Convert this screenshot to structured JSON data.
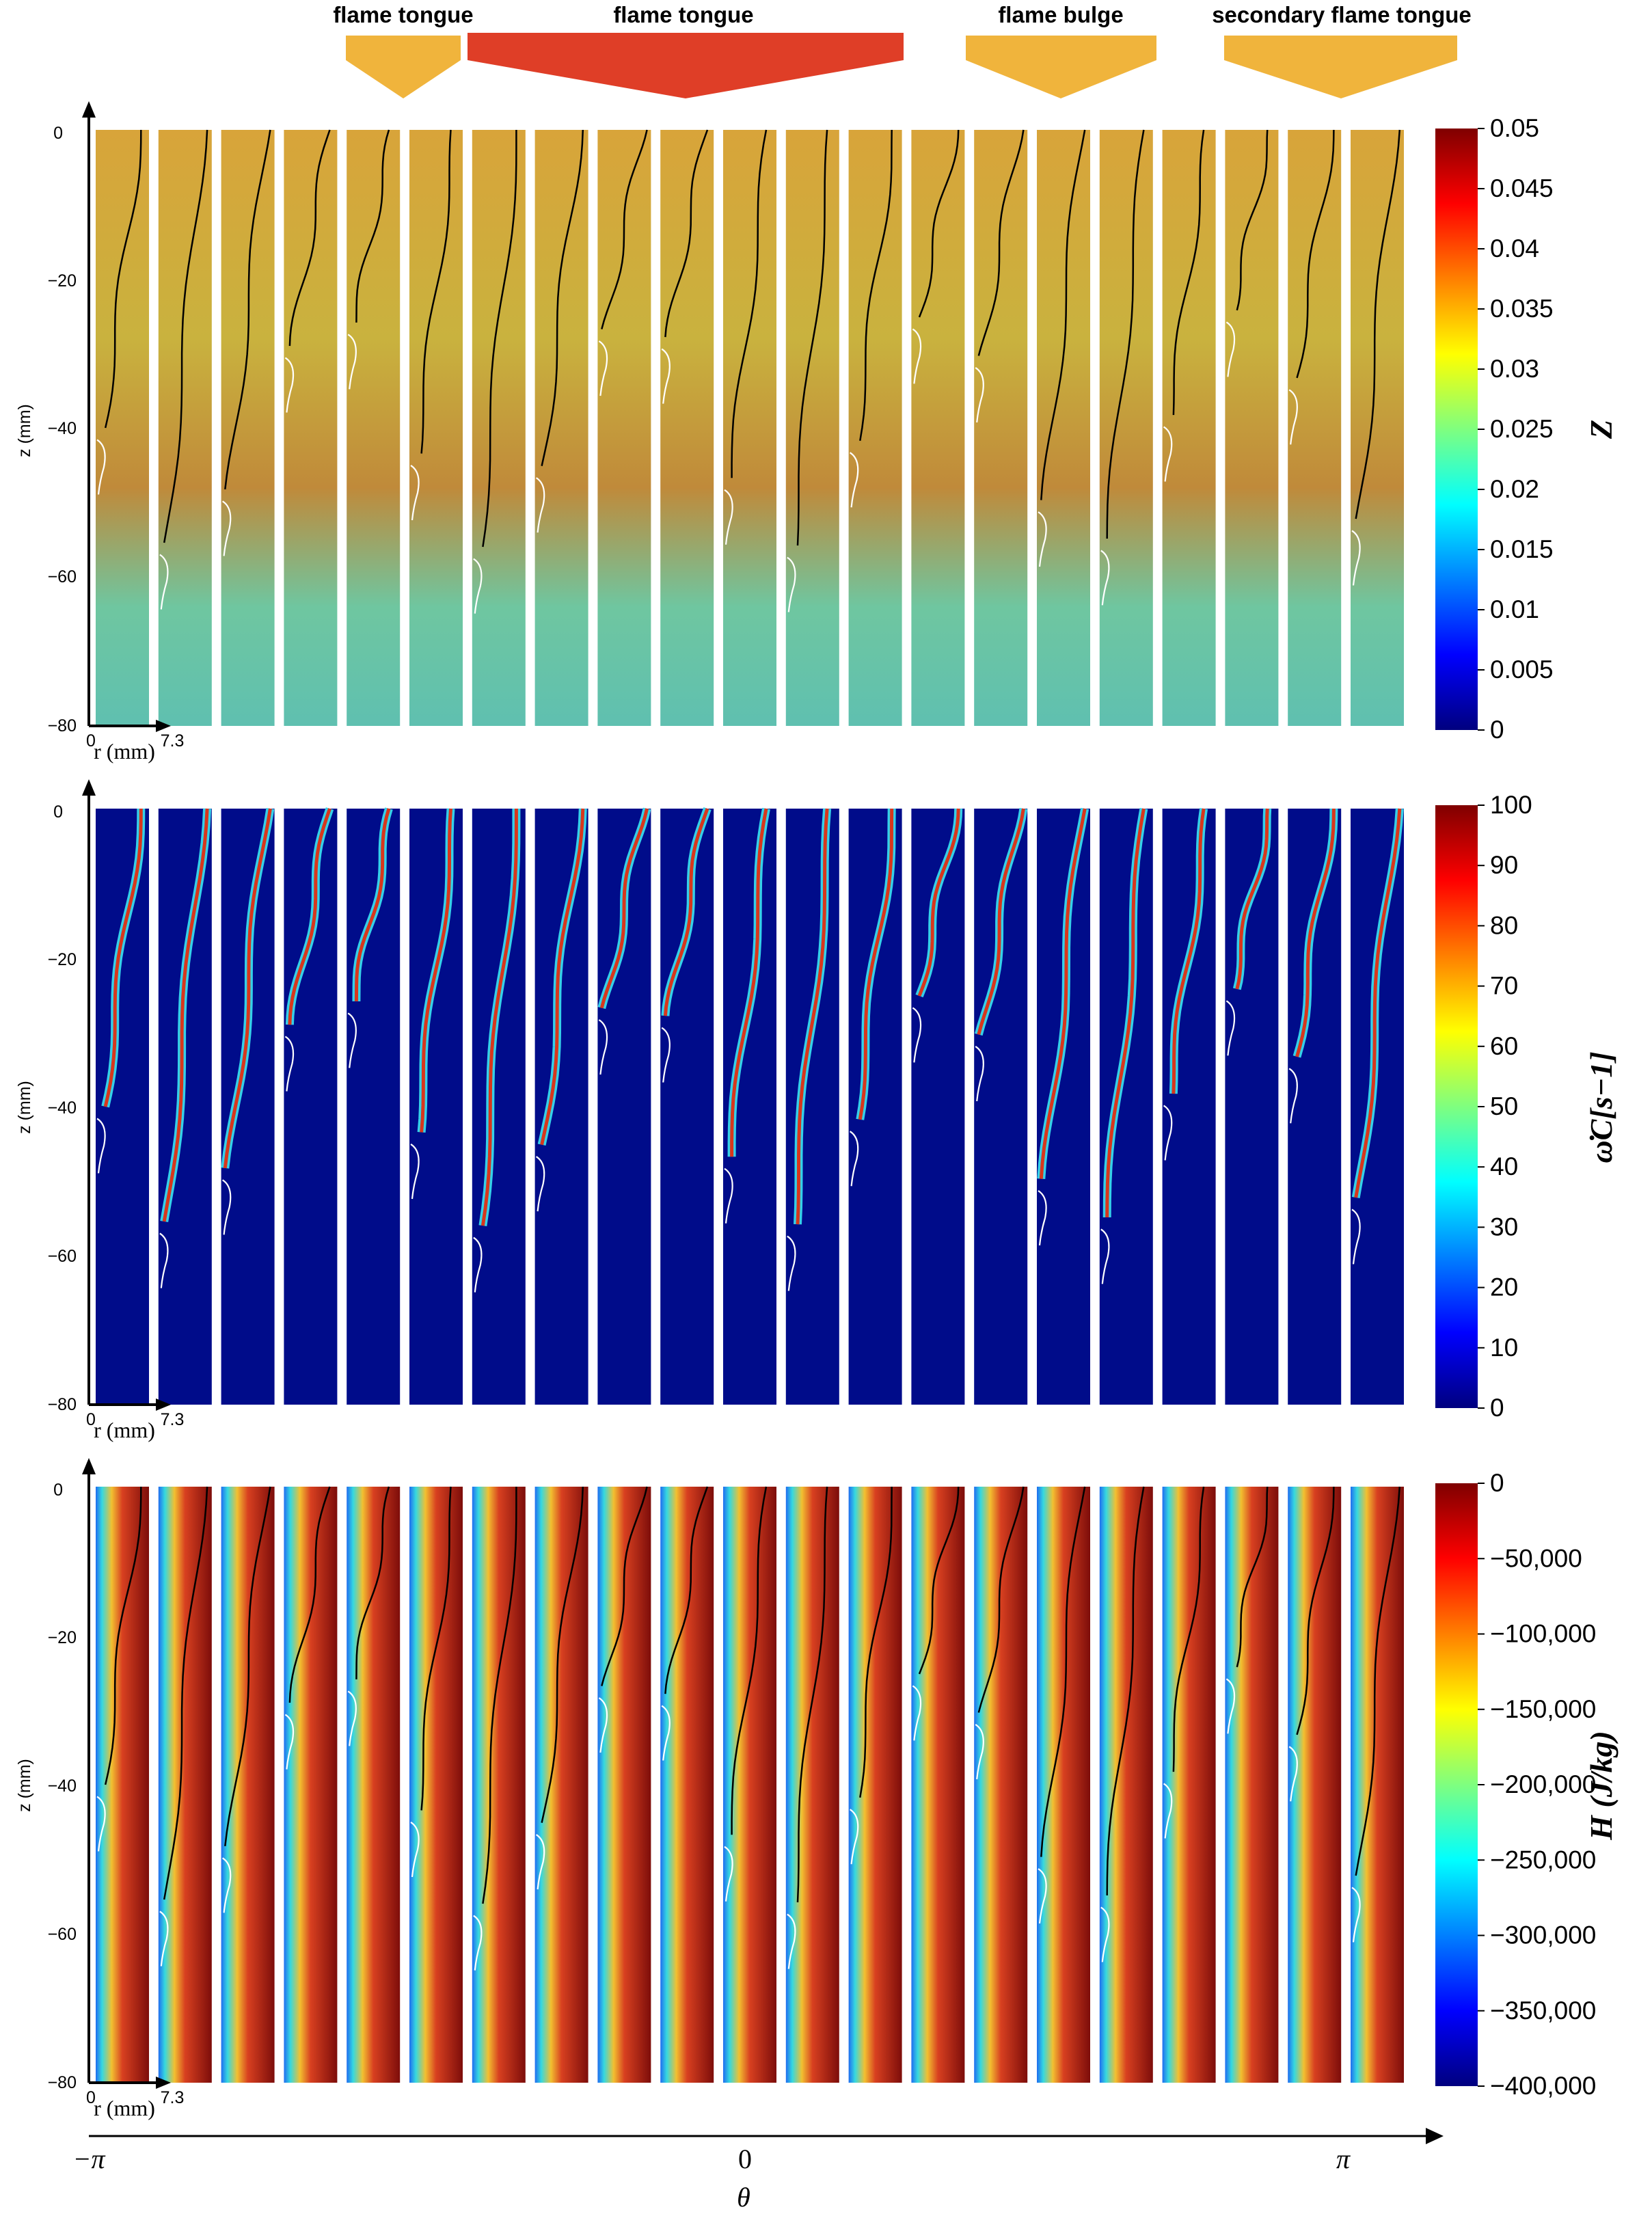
{
  "annotations": [
    {
      "label": "flame tongue",
      "color": "#f0b43c"
    },
    {
      "label": "flame tongue",
      "color": "#df3e27"
    },
    {
      "label": "flame bulge",
      "color": "#f0b43c"
    },
    {
      "label": "secondary flame tongue",
      "color": "#f0b43c"
    }
  ],
  "chart_data": [
    {
      "type": "heatmap",
      "title": "",
      "variable": "Z",
      "xlabel": "r (mm)",
      "ylabel": "z (mm)",
      "xlim": [
        0,
        7.3
      ],
      "ylim": [
        -80,
        0
      ],
      "x_ticks": [
        "0",
        "7.3"
      ],
      "y_ticks": [
        "0",
        "−20",
        "−40",
        "−60",
        "−80"
      ],
      "colorbar": {
        "label": "Z",
        "range": [
          0,
          0.05
        ],
        "ticks": [
          "0.05",
          "0.045",
          "0.04",
          "0.035",
          "0.03",
          "0.025",
          "0.02",
          "0.015",
          "0.01",
          "0.005",
          "0"
        ],
        "colormap": "jet"
      },
      "n_slices": 21
    },
    {
      "type": "heatmap",
      "title": "",
      "variable": "ω̇_C",
      "xlabel": "r (mm)",
      "ylabel": "z (mm)",
      "xlim": [
        0,
        7.3
      ],
      "ylim": [
        -80,
        0
      ],
      "x_ticks": [
        "0",
        "7.3"
      ],
      "y_ticks": [
        "0",
        "−20",
        "−40",
        "−60",
        "−80"
      ],
      "colorbar": {
        "label": "ω̇C[s−1]",
        "range": [
          0,
          100
        ],
        "ticks": [
          "100",
          "90",
          "80",
          "70",
          "60",
          "50",
          "40",
          "30",
          "20",
          "10",
          "0"
        ],
        "colormap": "jet"
      },
      "n_slices": 21
    },
    {
      "type": "heatmap",
      "title": "",
      "variable": "H",
      "xlabel": "r (mm)",
      "ylabel": "z (mm)",
      "xlim": [
        0,
        7.3
      ],
      "ylim": [
        -80,
        0
      ],
      "x_ticks": [
        "0",
        "7.3"
      ],
      "y_ticks": [
        "0",
        "−20",
        "−40",
        "−60",
        "−80"
      ],
      "colorbar": {
        "label": "H (J/kg)",
        "range": [
          -400000,
          0
        ],
        "ticks": [
          "0",
          "−50,000",
          "−100,000",
          "−150,000",
          "−200,000",
          "−250,000",
          "−300,000",
          "−350,000",
          "−400,000"
        ],
        "colormap": "jet"
      },
      "n_slices": 21
    }
  ],
  "theta_axis": {
    "label": "θ",
    "ticks": [
      "−π",
      "0",
      "π"
    ]
  }
}
